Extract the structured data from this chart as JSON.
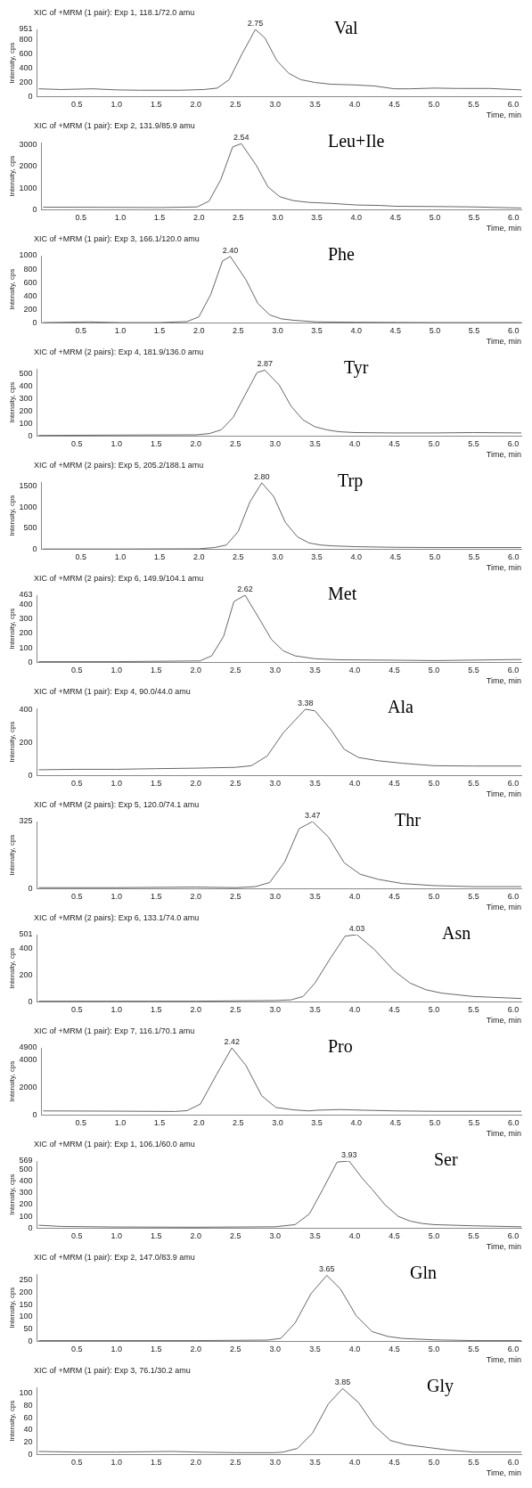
{
  "chart_data": [
    {
      "type": "line",
      "title": "Val",
      "subtitle": "XIC of +MRM (1 pair): Exp 1, 118.1/72.0 amu",
      "xlabel": "Time, min",
      "ylabel": "Intensity, cps",
      "color": "#666666",
      "marker": "none",
      "grid": false,
      "legend": false,
      "xlim": [
        0,
        6.1
      ],
      "xticks": [
        0.5,
        {
          "value": 1,
          "label": "1.0"
        },
        1.5,
        {
          "value": 2,
          "label": "2.0"
        },
        2.5,
        {
          "value": 3,
          "label": "3.0"
        },
        3.5,
        {
          "value": 4,
          "label": "4.0"
        },
        4.5,
        {
          "value": 5,
          "label": "5.0"
        },
        5.5,
        {
          "value": 6,
          "label": "6.0"
        }
      ],
      "ylim": [
        0,
        951
      ],
      "yticks": [
        0,
        200,
        400,
        600,
        800,
        951
      ],
      "annotations": [
        {
          "text": "2.75",
          "x": 2.75,
          "y": 951
        }
      ],
      "x": [
        0.02,
        0.3,
        0.7,
        1.0,
        1.3,
        1.8,
        2.1,
        2.27,
        2.42,
        2.58,
        2.75,
        2.87,
        3.02,
        3.17,
        3.32,
        3.5,
        3.7,
        4.0,
        4.25,
        4.5,
        4.7,
        5.0,
        5.3,
        5.7,
        6.1
      ],
      "values": [
        110,
        100,
        110,
        95,
        90,
        90,
        100,
        120,
        240,
        600,
        951,
        830,
        510,
        330,
        240,
        200,
        175,
        165,
        150,
        110,
        110,
        120,
        115,
        115,
        95
      ]
    },
    {
      "type": "line",
      "title": "Leu+Ile",
      "subtitle": "XIC of +MRM (1 pair): Exp 2, 131.9/85.9 amu",
      "xlabel": "Time, min",
      "ylabel": "Intensity, cps",
      "color": "#666666",
      "marker": "none",
      "grid": false,
      "legend": false,
      "xlim": [
        0,
        6.1
      ],
      "xticks": [
        0.5,
        {
          "value": 1,
          "label": "1.0"
        },
        1.5,
        {
          "value": 2,
          "label": "2.0"
        },
        2.5,
        {
          "value": 3,
          "label": "3.0"
        },
        3.5,
        {
          "value": 4,
          "label": "4.0"
        },
        4.5,
        {
          "value": 5,
          "label": "5.0"
        },
        5.5,
        {
          "value": 6,
          "label": "6.0"
        }
      ],
      "ylim": [
        0,
        3100
      ],
      "yticks": [
        0,
        1000,
        2000,
        3000
      ],
      "annotations": [
        {
          "text": "2.54",
          "x": 2.54,
          "y": 3050
        }
      ],
      "x": [
        0.02,
        1.0,
        1.5,
        1.98,
        2.13,
        2.28,
        2.43,
        2.54,
        2.73,
        2.88,
        3.03,
        3.2,
        3.4,
        3.7,
        4.0,
        4.3,
        4.5,
        5.0,
        5.5,
        6.1
      ],
      "values": [
        120,
        110,
        100,
        130,
        400,
        1400,
        2900,
        3050,
        2050,
        1050,
        600,
        420,
        340,
        290,
        220,
        200,
        160,
        150,
        130,
        80
      ]
    },
    {
      "type": "line",
      "title": "Phe",
      "subtitle": "XIC of +MRM (1 pair): Exp 3, 166.1/120.0 amu",
      "xlabel": "Time, min",
      "ylabel": "Intensity, cps",
      "color": "#666666",
      "marker": "none",
      "grid": false,
      "legend": false,
      "xlim": [
        0,
        6.1
      ],
      "xticks": [
        0.5,
        {
          "value": 1,
          "label": "1.0"
        },
        1.5,
        {
          "value": 2,
          "label": "2.0"
        },
        2.5,
        {
          "value": 3,
          "label": "3.0"
        },
        3.5,
        {
          "value": 4,
          "label": "4.0"
        },
        4.5,
        {
          "value": 5,
          "label": "5.0"
        },
        5.5,
        {
          "value": 6,
          "label": "6.0"
        }
      ],
      "ylim": [
        0,
        1000
      ],
      "yticks": [
        0,
        200,
        400,
        600,
        800,
        1000
      ],
      "annotations": [
        {
          "text": "2.40",
          "x": 2.4,
          "y": 990
        }
      ],
      "x": [
        0.02,
        0.6,
        1.0,
        1.5,
        1.85,
        2.0,
        2.15,
        2.3,
        2.4,
        2.6,
        2.75,
        2.9,
        3.05,
        3.2,
        3.5,
        4.0,
        5.0,
        6.1
      ],
      "values": [
        5,
        15,
        5,
        5,
        20,
        90,
        420,
        920,
        990,
        640,
        290,
        120,
        60,
        40,
        15,
        10,
        5,
        5
      ]
    },
    {
      "type": "line",
      "title": "Tyr",
      "subtitle": "XIC of +MRM (2 pairs): Exp 4, 181.9/136.0 amu",
      "xlabel": "Time, min",
      "ylabel": "Intensity, cps",
      "color": "#666666",
      "marker": "none",
      "grid": false,
      "legend": false,
      "xlim": [
        0,
        6.1
      ],
      "xticks": [
        0.5,
        {
          "value": 1,
          "label": "1.0"
        },
        1.5,
        {
          "value": 2,
          "label": "2.0"
        },
        2.5,
        {
          "value": 3,
          "label": "3.0"
        },
        3.5,
        {
          "value": 4,
          "label": "4.0"
        },
        4.5,
        {
          "value": 5,
          "label": "5.0"
        },
        5.5,
        {
          "value": 6,
          "label": "6.0"
        }
      ],
      "ylim": [
        0,
        540
      ],
      "yticks": [
        0,
        100,
        200,
        300,
        400,
        500
      ],
      "annotations": [
        {
          "text": "2.87",
          "x": 2.87,
          "y": 530
        }
      ],
      "x": [
        0.02,
        1.0,
        2.0,
        2.17,
        2.32,
        2.47,
        2.62,
        2.77,
        2.87,
        3.05,
        3.2,
        3.35,
        3.5,
        3.65,
        3.8,
        4.0,
        4.5,
        5.0,
        5.5,
        6.1
      ],
      "values": [
        5,
        8,
        10,
        20,
        50,
        150,
        330,
        510,
        530,
        410,
        240,
        130,
        75,
        50,
        35,
        28,
        25,
        25,
        28,
        25
      ]
    },
    {
      "type": "line",
      "title": "Trp",
      "subtitle": "XIC of +MRM (2 pairs): Exp 5, 205.2/188.1 amu",
      "xlabel": "Time, min",
      "ylabel": "Intensity, cps",
      "color": "#666666",
      "marker": "none",
      "grid": false,
      "legend": false,
      "xlim": [
        0,
        6.1
      ],
      "xticks": [
        0.5,
        {
          "value": 1,
          "label": "1.0"
        },
        1.5,
        {
          "value": 2,
          "label": "2.0"
        },
        2.5,
        {
          "value": 3,
          "label": "3.0"
        },
        3.5,
        {
          "value": 4,
          "label": "4.0"
        },
        4.5,
        {
          "value": 5,
          "label": "5.0"
        },
        5.5,
        {
          "value": 6,
          "label": "6.0"
        }
      ],
      "ylim": [
        0,
        1600
      ],
      "yticks": [
        0,
        500,
        1000,
        1500
      ],
      "annotations": [
        {
          "text": "2.80",
          "x": 2.8,
          "y": 1580
        }
      ],
      "x": [
        0.02,
        1.0,
        2.0,
        2.2,
        2.35,
        2.5,
        2.65,
        2.8,
        2.95,
        3.1,
        3.25,
        3.4,
        3.55,
        3.7,
        4.0,
        4.5,
        5.0,
        6.1
      ],
      "values": [
        5,
        5,
        10,
        40,
        100,
        420,
        1130,
        1580,
        1260,
        640,
        300,
        150,
        100,
        80,
        60,
        45,
        40,
        40
      ]
    },
    {
      "type": "line",
      "title": "Met",
      "subtitle": "XIC of +MRM (2 pairs): Exp 6, 149.9/104.1 amu",
      "xlabel": "Time, min",
      "ylabel": "Intensity, cps",
      "color": "#666666",
      "marker": "none",
      "grid": false,
      "legend": false,
      "xlim": [
        0,
        6.1
      ],
      "xticks": [
        0.5,
        {
          "value": 1,
          "label": "1.0"
        },
        1.5,
        {
          "value": 2,
          "label": "2.0"
        },
        2.5,
        {
          "value": 3,
          "label": "3.0"
        },
        3.5,
        {
          "value": 4,
          "label": "4.0"
        },
        4.5,
        {
          "value": 5,
          "label": "5.0"
        },
        5.5,
        {
          "value": 6,
          "label": "6.0"
        }
      ],
      "ylim": [
        0,
        463
      ],
      "yticks": [
        0,
        100,
        200,
        300,
        400,
        463
      ],
      "annotations": [
        {
          "text": "2.62",
          "x": 2.62,
          "y": 463
        }
      ],
      "x": [
        0.02,
        1.0,
        2.05,
        2.2,
        2.35,
        2.48,
        2.62,
        2.8,
        2.95,
        3.1,
        3.25,
        3.5,
        3.8,
        4.5,
        5.0,
        6.1
      ],
      "values": [
        5,
        5,
        10,
        45,
        180,
        420,
        463,
        300,
        160,
        80,
        45,
        25,
        18,
        15,
        12,
        20
      ]
    },
    {
      "type": "line",
      "title": "Ala",
      "subtitle": "XIC of +MRM (1 pair): Exp 4, 90.0/44.0 amu",
      "xlabel": "Time, min",
      "ylabel": "Intensity, cps",
      "color": "#666666",
      "marker": "none",
      "grid": false,
      "legend": false,
      "xlim": [
        0,
        6.1
      ],
      "xticks": [
        0.5,
        {
          "value": 1,
          "label": "1.0"
        },
        1.5,
        {
          "value": 2,
          "label": "2.0"
        },
        2.5,
        {
          "value": 3,
          "label": "3.0"
        },
        3.5,
        {
          "value": 4,
          "label": "4.0"
        },
        4.5,
        {
          "value": 5,
          "label": "5.0"
        },
        5.5,
        {
          "value": 6,
          "label": "6.0"
        }
      ],
      "ylim": [
        0,
        410
      ],
      "yticks": [
        0,
        200,
        400
      ],
      "annotations": [
        {
          "text": "3.38",
          "x": 3.38,
          "y": 405
        }
      ],
      "x": [
        0.02,
        0.5,
        1.0,
        1.5,
        2.0,
        2.5,
        2.7,
        2.9,
        3.1,
        3.38,
        3.5,
        3.7,
        3.87,
        4.05,
        4.3,
        4.6,
        5.0,
        5.5,
        6.1
      ],
      "values": [
        35,
        38,
        38,
        42,
        45,
        50,
        60,
        120,
        260,
        405,
        395,
        280,
        160,
        110,
        90,
        75,
        60,
        58,
        58
      ]
    },
    {
      "type": "line",
      "title": "Thr",
      "subtitle": "XIC of +MRM (2 pairs): Exp 5, 120.0/74.1 amu",
      "xlabel": "Time, min",
      "ylabel": "Intensity, cps",
      "color": "#666666",
      "marker": "none",
      "grid": false,
      "legend": false,
      "xlim": [
        0,
        6.1
      ],
      "xticks": [
        0.5,
        {
          "value": 1,
          "label": "1.0"
        },
        1.5,
        {
          "value": 2,
          "label": "2.0"
        },
        2.5,
        {
          "value": 3,
          "label": "3.0"
        },
        3.5,
        {
          "value": 4,
          "label": "4.0"
        },
        4.5,
        {
          "value": 5,
          "label": "5.0"
        },
        5.5,
        {
          "value": 6,
          "label": "6.0"
        }
      ],
      "ylim": [
        0,
        325
      ],
      "yticks": [
        0,
        325
      ],
      "annotations": [
        {
          "text": "3.47",
          "x": 3.47,
          "y": 325
        }
      ],
      "x": [
        0.02,
        1.0,
        2.0,
        2.5,
        2.75,
        2.93,
        3.12,
        3.3,
        3.47,
        3.67,
        3.87,
        4.07,
        4.3,
        4.6,
        5.0,
        5.5,
        6.1
      ],
      "values": [
        5,
        5,
        8,
        5,
        10,
        30,
        130,
        290,
        325,
        250,
        125,
        70,
        45,
        25,
        15,
        10,
        10
      ]
    },
    {
      "type": "line",
      "title": "Asn",
      "subtitle": "XIC of +MRM (2 pairs): Exp 6, 133.1/74.0 amu",
      "xlabel": "Time, min",
      "ylabel": "Intensity, cps",
      "color": "#666666",
      "marker": "none",
      "grid": false,
      "legend": false,
      "xlim": [
        0,
        6.1
      ],
      "xticks": [
        0.5,
        {
          "value": 1,
          "label": "1.0"
        },
        1.5,
        {
          "value": 2,
          "label": "2.0"
        },
        2.5,
        {
          "value": 3,
          "label": "3.0"
        },
        3.5,
        {
          "value": 4,
          "label": "4.0"
        },
        4.5,
        {
          "value": 5,
          "label": "5.0"
        },
        5.5,
        {
          "value": 6,
          "label": "6.0"
        }
      ],
      "ylim": [
        0,
        501
      ],
      "yticks": [
        0,
        200,
        400,
        501
      ],
      "annotations": [
        {
          "text": "4.03",
          "x": 4.03,
          "y": 501
        }
      ],
      "x": [
        0.02,
        1.0,
        2.0,
        3.0,
        3.2,
        3.35,
        3.5,
        3.7,
        3.88,
        4.03,
        4.25,
        4.5,
        4.7,
        4.9,
        5.1,
        5.5,
        6.1
      ],
      "values": [
        5,
        5,
        5,
        10,
        15,
        40,
        140,
        330,
        490,
        501,
        390,
        230,
        140,
        90,
        65,
        40,
        25
      ]
    },
    {
      "type": "line",
      "title": "Pro",
      "subtitle": "XIC of +MRM (1 pair): Exp 7, 116.1/70.1 amu",
      "xlabel": "Time, min",
      "ylabel": "Intensity, cps",
      "color": "#666666",
      "marker": "none",
      "grid": false,
      "legend": false,
      "xlim": [
        0,
        6.1
      ],
      "xticks": [
        0.5,
        {
          "value": 1,
          "label": "1.0"
        },
        1.5,
        {
          "value": 2,
          "label": "2.0"
        },
        2.5,
        {
          "value": 3,
          "label": "3.0"
        },
        3.5,
        {
          "value": 4,
          "label": "4.0"
        },
        4.5,
        {
          "value": 5,
          "label": "5.0"
        },
        5.5,
        {
          "value": 6,
          "label": "6.0"
        }
      ],
      "ylim": [
        0,
        4900
      ],
      "yticks": [
        0,
        2000,
        4000,
        4900
      ],
      "annotations": [
        {
          "text": "2.42",
          "x": 2.42,
          "y": 4900
        }
      ],
      "x": [
        0.02,
        1.0,
        1.7,
        1.85,
        2.02,
        2.22,
        2.42,
        2.6,
        2.8,
        2.98,
        3.2,
        3.4,
        3.5,
        3.8,
        4.1,
        4.5,
        5.0,
        5.5,
        6.1
      ],
      "values": [
        300,
        280,
        260,
        320,
        800,
        2900,
        4900,
        3600,
        1400,
        550,
        380,
        300,
        350,
        400,
        350,
        300,
        270,
        270,
        270
      ]
    },
    {
      "type": "line",
      "title": "Ser",
      "subtitle": "XIC of +MRM (1 pair): Exp 1, 106.1/60.0 amu",
      "xlabel": "Time, min",
      "ylabel": "Intensity, cps",
      "color": "#666666",
      "marker": "none",
      "grid": false,
      "legend": false,
      "xlim": [
        0,
        6.1
      ],
      "xticks": [
        0.5,
        {
          "value": 1,
          "label": "1.0"
        },
        1.5,
        {
          "value": 2,
          "label": "2.0"
        },
        2.5,
        {
          "value": 3,
          "label": "3.0"
        },
        3.5,
        {
          "value": 4,
          "label": "4.0"
        },
        4.5,
        {
          "value": 5,
          "label": "5.0"
        },
        5.5,
        {
          "value": 6,
          "label": "6.0"
        }
      ],
      "ylim": [
        0,
        569
      ],
      "yticks": [
        0,
        100,
        200,
        300,
        400,
        500,
        569
      ],
      "annotations": [
        {
          "text": "3.93",
          "x": 3.93,
          "y": 569
        }
      ],
      "x": [
        0.02,
        0.3,
        1.0,
        2.0,
        3.0,
        3.25,
        3.43,
        3.6,
        3.78,
        3.93,
        4.1,
        4.22,
        4.38,
        4.55,
        4.7,
        4.85,
        5.0,
        5.5,
        6.1
      ],
      "values": [
        25,
        15,
        10,
        8,
        12,
        30,
        120,
        330,
        560,
        569,
        420,
        330,
        200,
        100,
        60,
        40,
        30,
        20,
        12
      ]
    },
    {
      "type": "line",
      "title": "Gln",
      "subtitle": "XIC of +MRM (1 pair): Exp 2, 147.0/83.9 amu",
      "xlabel": "Time, min",
      "ylabel": "Intensity, cps",
      "color": "#666666",
      "marker": "none",
      "grid": false,
      "legend": false,
      "xlim": [
        0,
        6.1
      ],
      "xticks": [
        0.5,
        {
          "value": 1,
          "label": "1.0"
        },
        1.5,
        {
          "value": 2,
          "label": "2.0"
        },
        2.5,
        {
          "value": 3,
          "label": "3.0"
        },
        3.5,
        {
          "value": 4,
          "label": "4.0"
        },
        4.5,
        {
          "value": 5,
          "label": "5.0"
        },
        5.5,
        {
          "value": 6,
          "label": "6.0"
        }
      ],
      "ylim": [
        0,
        275
      ],
      "yticks": [
        0,
        50,
        100,
        150,
        200,
        250
      ],
      "annotations": [
        {
          "text": "3.65",
          "x": 3.65,
          "y": 270
        }
      ],
      "x": [
        0.02,
        1.0,
        2.0,
        2.9,
        3.07,
        3.25,
        3.45,
        3.65,
        3.82,
        4.02,
        4.22,
        4.42,
        4.6,
        5.0,
        5.5,
        6.1
      ],
      "values": [
        3,
        3,
        3,
        5,
        12,
        75,
        195,
        270,
        215,
        105,
        40,
        20,
        12,
        6,
        3,
        3
      ]
    },
    {
      "type": "line",
      "title": "Gly",
      "subtitle": "XIC of +MRM (1 pair): Exp 3, 76.1/30.2 amu",
      "xlabel": "Time, min",
      "ylabel": "Intensity, cps",
      "color": "#666666",
      "marker": "none",
      "grid": false,
      "legend": false,
      "xlim": [
        0,
        6.1
      ],
      "xticks": [
        0.5,
        {
          "value": 1,
          "label": "1.0"
        },
        1.5,
        {
          "value": 2,
          "label": "2.0"
        },
        2.5,
        {
          "value": 3,
          "label": "3.0"
        },
        3.5,
        {
          "value": 4,
          "label": "4.0"
        },
        4.5,
        {
          "value": 5,
          "label": "5.0"
        },
        5.5,
        {
          "value": 6,
          "label": "6.0"
        }
      ],
      "ylim": [
        0,
        110
      ],
      "yticks": [
        0,
        20,
        40,
        60,
        80,
        100
      ],
      "annotations": [
        {
          "text": "3.85",
          "x": 3.85,
          "y": 108
        }
      ],
      "x": [
        0.02,
        0.5,
        1.0,
        1.7,
        2.0,
        2.5,
        3.0,
        3.1,
        3.28,
        3.47,
        3.67,
        3.85,
        4.05,
        4.25,
        4.45,
        4.65,
        4.9,
        5.2,
        5.5,
        6.1
      ],
      "values": [
        5,
        4,
        4,
        5,
        4,
        3,
        3,
        4,
        10,
        35,
        83,
        108,
        85,
        47,
        23,
        16,
        12,
        7,
        4,
        4
      ]
    }
  ]
}
